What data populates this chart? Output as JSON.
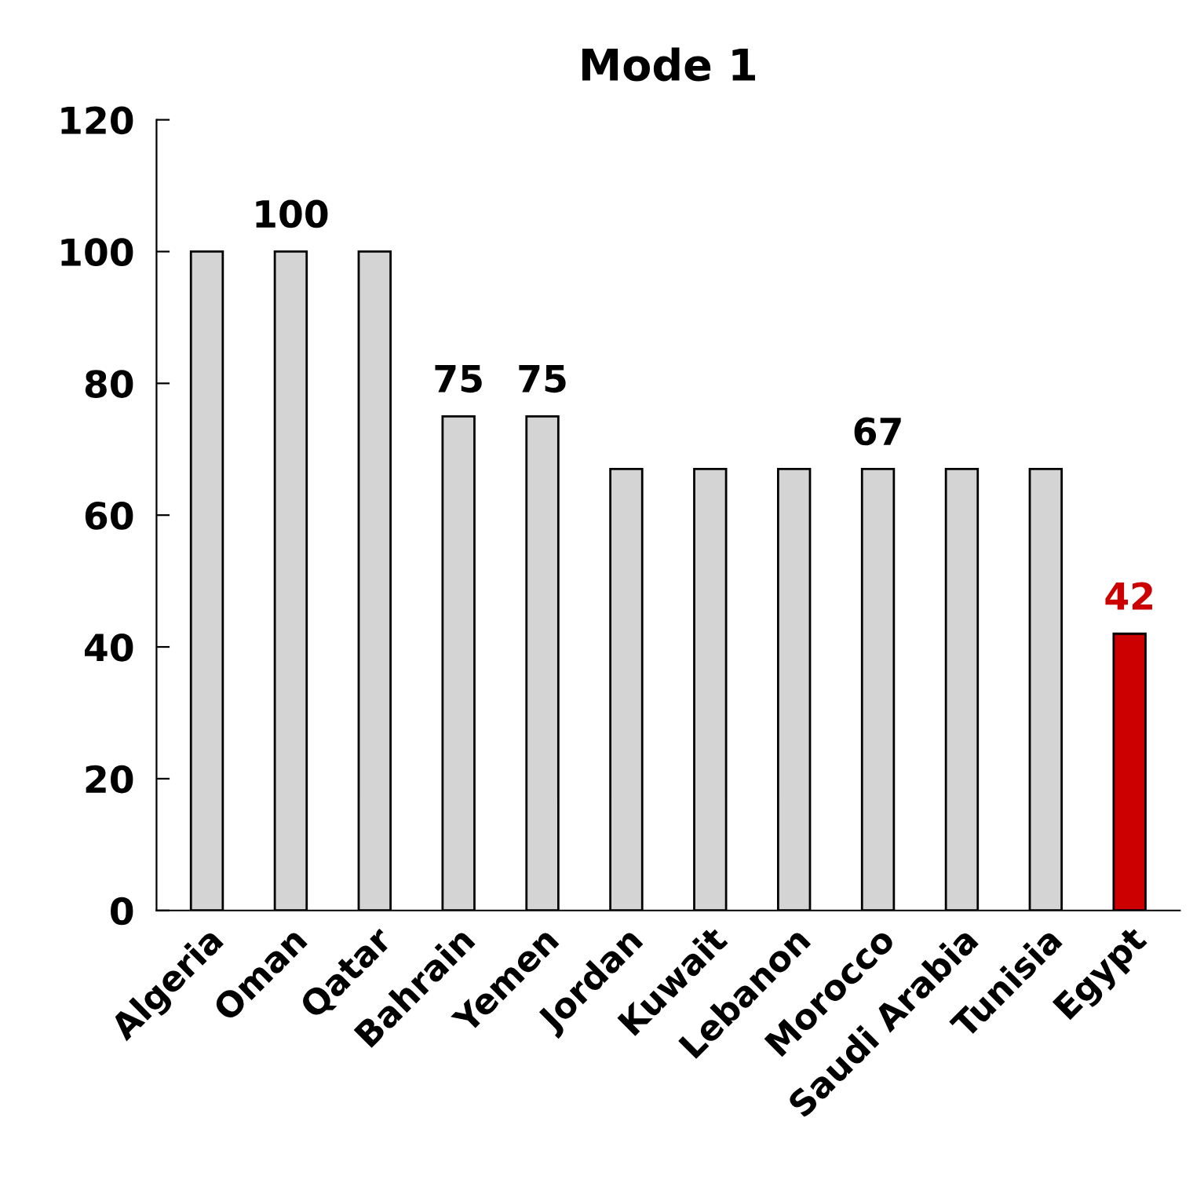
{
  "chart_data": {
    "type": "bar",
    "title": "Mode 1",
    "categories": [
      "Algeria",
      "Oman",
      "Qatar",
      "Bahrain",
      "Yemen",
      "Jordan",
      "Kuwait",
      "Lebanon",
      "Morocco",
      "Saudi Arabia",
      "Tunisia",
      "Egypt"
    ],
    "values": [
      100,
      100,
      100,
      75,
      75,
      67,
      67,
      67,
      67,
      67,
      67,
      42
    ],
    "colors": [
      "#d4d4d4",
      "#d4d4d4",
      "#d4d4d4",
      "#d4d4d4",
      "#d4d4d4",
      "#d4d4d4",
      "#d4d4d4",
      "#d4d4d4",
      "#d4d4d4",
      "#d4d4d4",
      "#d4d4d4",
      "#cc0000"
    ],
    "value_labels": [
      null,
      "100",
      null,
      "75",
      "75",
      null,
      null,
      null,
      "67",
      null,
      null,
      "42"
    ],
    "ylim": [
      0,
      120
    ],
    "yticks": [
      0,
      20,
      40,
      60,
      80,
      100,
      120
    ],
    "grid": false,
    "legend": false
  }
}
